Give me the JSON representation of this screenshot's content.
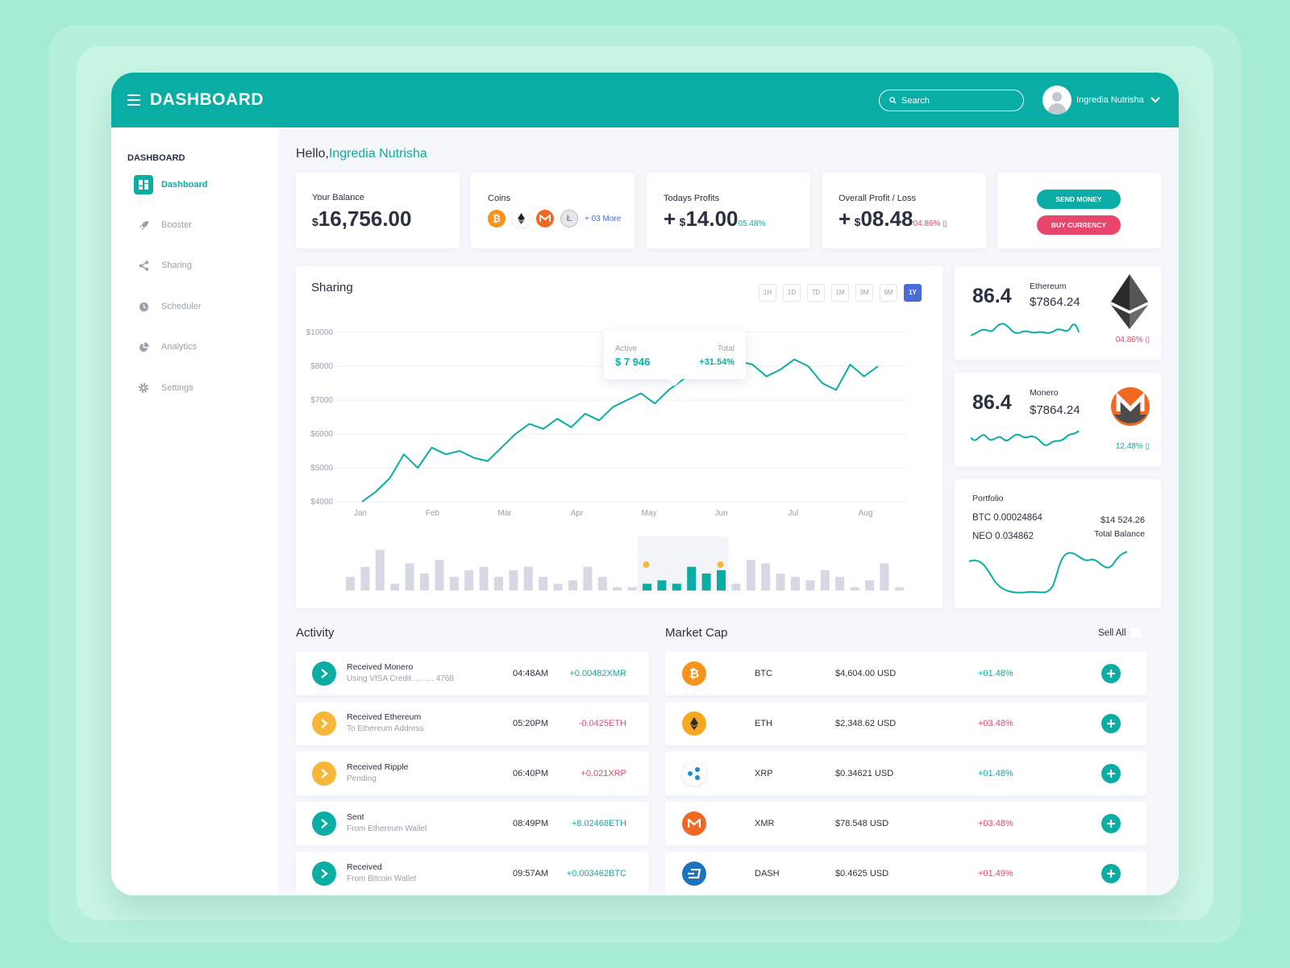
{
  "header": {
    "title": "DASHBOARD",
    "search_placeholder": "Search",
    "user_name": "Ingredia Nutrisha"
  },
  "sidebar": {
    "heading": "DASHBOARD",
    "items": [
      {
        "label": "Dashboard",
        "icon": "dashboard-icon"
      },
      {
        "label": "Booster",
        "icon": "rocket-icon"
      },
      {
        "label": "Sharing",
        "icon": "share-icon"
      },
      {
        "label": "Scheduler",
        "icon": "clock-icon"
      },
      {
        "label": "Analytics",
        "icon": "pie-chart-icon"
      },
      {
        "label": "Settings",
        "icon": "gear-icon"
      }
    ]
  },
  "greeting": {
    "prefix": "Hello,",
    "name": "Ingredia Nutrisha"
  },
  "summary": {
    "balance": {
      "label": "Your Balance",
      "currency": "$",
      "value": "16,756.00"
    },
    "coins": {
      "label": "Coins",
      "more": "+ 03 More"
    },
    "profits": {
      "label": "Todays Profits",
      "sign": "+",
      "currency": "$",
      "value": "14.00",
      "change": "05.48%"
    },
    "overall": {
      "label": "Overall Profit / Loss",
      "sign": "+",
      "currency": "$",
      "value": "08.48",
      "change": "04.86% ▯"
    },
    "send_label": "SEND MONEY",
    "buy_label": "BUY CURRENCY"
  },
  "sharing": {
    "title": "Sharing",
    "ranges": [
      "1H",
      "1D",
      "7D",
      "1M",
      "3M",
      "6M",
      "1Y"
    ],
    "active_range": "1Y",
    "tooltip": {
      "active_label": "Active",
      "active_value": "$ 7 946",
      "total_label": "Total",
      "total_value": "+31.54%"
    }
  },
  "chart_data": {
    "type": "line",
    "title": "Sharing",
    "x_ticks": [
      "Jan",
      "Feb",
      "Mar",
      "Apr",
      "May",
      "Jun",
      "Jul",
      "Aug"
    ],
    "y_ticks": [
      "$10000",
      "$8000",
      "$7000",
      "$6000",
      "$5000",
      "$4000"
    ],
    "ylim": [
      4000,
      10000
    ],
    "series": [
      {
        "values": [
          4000,
          4300,
          4700,
          5400,
          5000,
          5600,
          5400,
          5500,
          5300,
          5200,
          5600,
          6000,
          6300,
          6150,
          6450,
          6200,
          6600,
          6400,
          6800,
          7000,
          7200,
          6900,
          7300,
          7600,
          7900,
          8100,
          7800,
          8300,
          8100,
          7700,
          7900,
          8400,
          8000,
          7500,
          7300,
          8100,
          7700,
          8000
        ]
      }
    ],
    "grid": true,
    "legend": "none",
    "volume_bars": [
      4,
      7,
      12,
      2,
      8,
      5,
      9,
      4,
      6,
      7,
      4,
      6,
      7,
      4,
      2,
      3,
      7,
      4,
      1,
      1,
      2,
      3,
      2,
      7,
      5,
      6,
      2,
      9,
      8,
      5,
      4,
      3,
      6,
      4,
      1,
      3,
      8,
      1
    ],
    "volume_highlight": [
      20,
      21,
      22,
      23,
      24,
      25
    ]
  },
  "tickers": [
    {
      "value": "86.4",
      "name": "Ethereum",
      "price": "$7864.24",
      "change": "04.86% ▯",
      "icon": "ethereum-icon"
    },
    {
      "value": "86.4",
      "name": "Monero",
      "price": "$7864.24",
      "change": "12.48% ▯",
      "icon": "monero-icon"
    }
  ],
  "portfolio": {
    "title": "Portfolio",
    "btc": "BTC 0.00024864",
    "neo": "NEO 0.034862",
    "total": "$14 524.26",
    "total_label": "Total Balance"
  },
  "activity": {
    "title": "Activity",
    "rows": [
      {
        "title": "Received Monero",
        "sub": "Using VISA Credit .... .... 4768",
        "time": "04:48AM",
        "amount": "+0.00482XMR",
        "positive": true,
        "icon_color": "#0aada3"
      },
      {
        "title": "Received Ethereum",
        "sub": "To Ethereum Address",
        "time": "05:20PM",
        "amount": "-0.0425ETH",
        "positive": false,
        "icon_color": "#f6b638"
      },
      {
        "title": "Received Ripple",
        "sub": "Pending",
        "time": "06:40PM",
        "amount": "+0.021XRP",
        "positive": false,
        "icon_color": "#f6b638"
      },
      {
        "title": "Sent",
        "sub": "From Ethereum Wallet",
        "time": "08:49PM",
        "amount": "+8.02468ETH",
        "positive": true,
        "icon_color": "#0aada3"
      },
      {
        "title": "Received",
        "sub": "From Bitcoin Wallet",
        "time": "09:57AM",
        "amount": "+0.003462BTC",
        "positive": true,
        "icon_color": "#0aada3"
      }
    ]
  },
  "market": {
    "title": "Market Cap",
    "sell_all": "Sell All",
    "rows": [
      {
        "symbol": "BTC",
        "price": "$4,604.00 USD",
        "change": "+01.48%",
        "positive": true,
        "icon": "bitcoin-icon"
      },
      {
        "symbol": "ETH",
        "price": "$2,348.62 USD",
        "change": "+03.48%",
        "positive": false,
        "icon": "ethereum-icon"
      },
      {
        "symbol": "XRP",
        "price": "$0.34621 USD",
        "change": "+01.48%",
        "positive": true,
        "icon": "ripple-icon"
      },
      {
        "symbol": "XMR",
        "price": "$78.548 USD",
        "change": "+03.48%",
        "positive": false,
        "icon": "monero-icon"
      },
      {
        "symbol": "DASH",
        "price": "$0.4625 USD",
        "change": "+01.49%",
        "positive": false,
        "icon": "dash-icon"
      }
    ]
  },
  "colors": {
    "accent": "#0aada3",
    "negative": "#e8456b",
    "bitcoin": "#f7931a",
    "monero": "#f26822",
    "bar_idle": "#d6d9e3",
    "range_active": "#4b6cd8"
  }
}
